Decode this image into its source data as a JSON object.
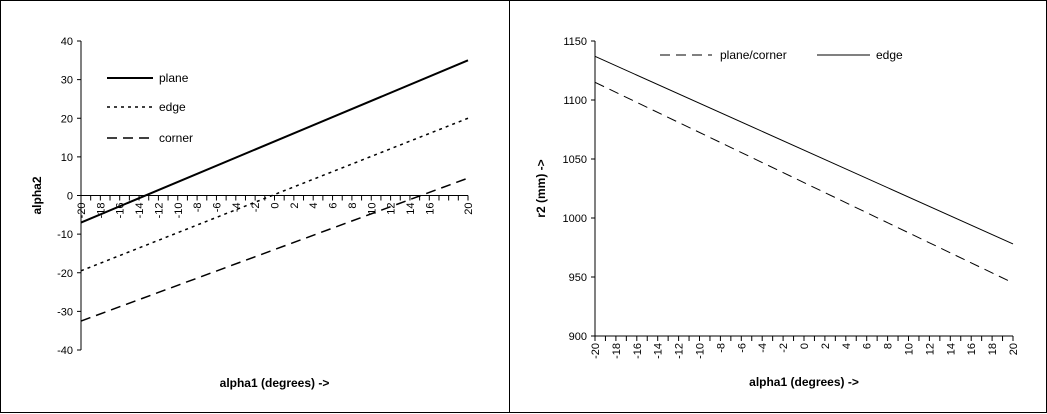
{
  "chart_data": [
    {
      "type": "line",
      "title": "",
      "xlabel": "alpha1 (degrees) ->",
      "ylabel": "alpha2",
      "xlim": [
        -20,
        20
      ],
      "ylim": [
        -40,
        40
      ],
      "yticks": [
        "-40",
        "-30",
        "-20",
        "-10",
        "0",
        "10",
        "20",
        "30",
        "40"
      ],
      "xticks": [
        "-20",
        "-18",
        "-16",
        "-14",
        "-12",
        "-10",
        "-8",
        "-6",
        "-4",
        "-2",
        "0",
        "2",
        "4",
        "6",
        "8",
        "10",
        "12",
        "14",
        "16",
        "20"
      ],
      "x": [
        -20,
        20
      ],
      "legend_position": "top-left",
      "grid": false,
      "series": [
        {
          "name": "plane",
          "style": "solid",
          "values": [
            -7,
            35
          ]
        },
        {
          "name": "edge",
          "style": "dotted",
          "values": [
            -19.5,
            20
          ]
        },
        {
          "name": "corner",
          "style": "dashed",
          "values": [
            -32.5,
            4.5
          ]
        }
      ]
    },
    {
      "type": "line",
      "title": "",
      "xlabel": "alpha1 (degrees) ->",
      "ylabel": "r2 (mm) ->",
      "xlim": [
        -20,
        20
      ],
      "ylim": [
        900,
        1150
      ],
      "yticks": [
        "900",
        "950",
        "1000",
        "1050",
        "1100",
        "1150"
      ],
      "xticks": [
        "-20",
        "-18",
        "-16",
        "-14",
        "-12",
        "-10",
        "-8",
        "-6",
        "-4",
        "-2",
        "0",
        "2",
        "4",
        "6",
        "8",
        "10",
        "12",
        "14",
        "16",
        "18",
        "20"
      ],
      "x": [
        -20,
        20
      ],
      "legend_position": "top",
      "grid": false,
      "series": [
        {
          "name": "plane/corner",
          "style": "dashed",
          "values": [
            1115,
            945
          ]
        },
        {
          "name": "edge",
          "style": "solid",
          "values": [
            1137,
            978
          ]
        }
      ]
    }
  ]
}
